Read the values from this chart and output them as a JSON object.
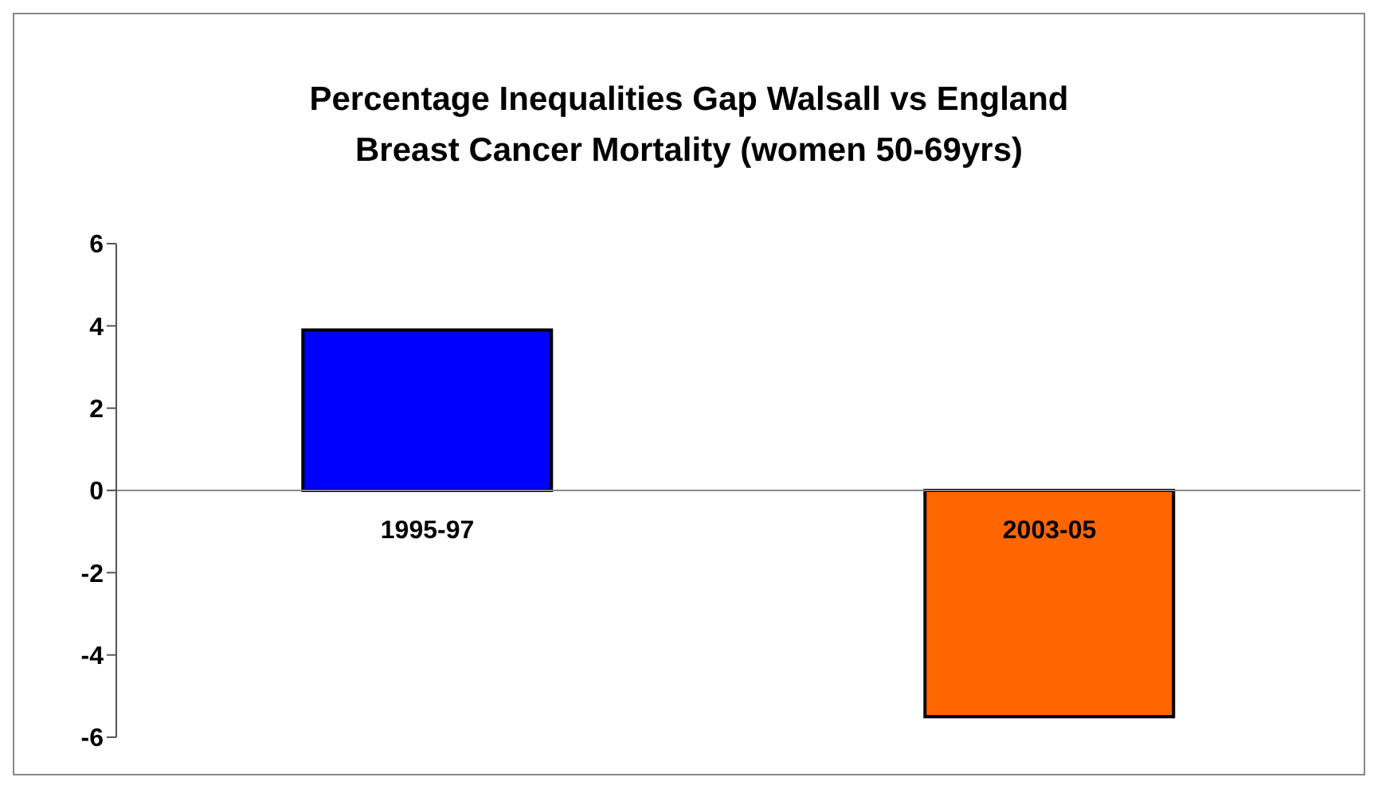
{
  "chart_data": {
    "type": "bar",
    "title": "Percentage Inequalities Gap Walsall vs England\nBreast Cancer Mortality (women 50-69yrs)",
    "categories": [
      "1995-97",
      "2003-05"
    ],
    "values": [
      3.9,
      -5.5
    ],
    "colors": [
      "#0000ff",
      "#ff6600"
    ],
    "ylim": [
      -6,
      6
    ],
    "yticks": [
      -6,
      -4,
      -2,
      0,
      2,
      4,
      6
    ],
    "grid": false
  }
}
